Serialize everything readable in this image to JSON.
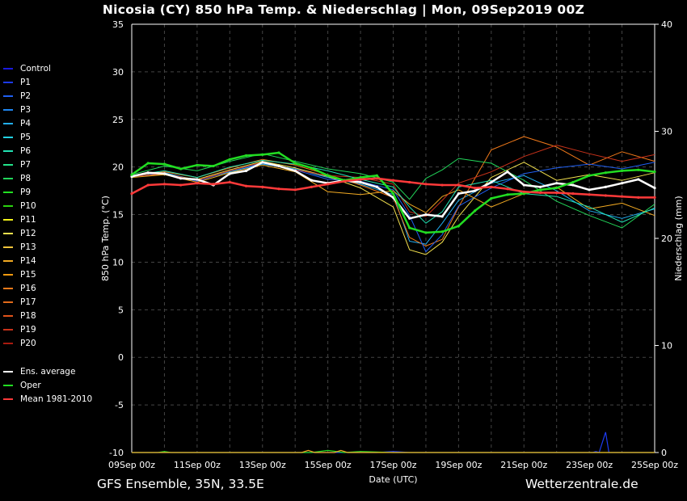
{
  "header": {
    "title": "Nicosia  (CY)  850 hPa Temp. & Niederschlag | Mon, 09Sep2019 00Z"
  },
  "footer": {
    "left": "GFS Ensemble, 35N, 33.5E",
    "right": "Wetterzentrale.de"
  },
  "chart_data": {
    "type": "line",
    "title": "Nicosia  (CY)  850 hPa Temp. & Niederschlag | Mon, 09Sep2019 00Z",
    "xlabel": "Date (UTC)",
    "ylabel": "850 hPa Temp. (°C)",
    "y2label": "Niederschlag (mm)",
    "ylim": [
      -10,
      35
    ],
    "y2lim": [
      0,
      40
    ],
    "yticks": [
      35,
      30,
      25,
      20,
      15,
      10,
      5,
      0,
      -5,
      -10
    ],
    "y2ticks": [
      40,
      30,
      20,
      10,
      0
    ],
    "xlim": [
      0,
      16
    ],
    "x_units": "days since 09Sep 00z (4 steps per day)",
    "xticks": [
      "09Sep 00z",
      "11Sep 00z",
      "13Sep 00z",
      "15Sep 00z",
      "17Sep 00z",
      "19Sep 00z",
      "21Sep 00z",
      "23Sep 00z",
      "25Sep 00z"
    ],
    "grid": true,
    "legend_position": "left",
    "legend": [
      {
        "name": "Control",
        "color": "#1a1adf"
      },
      {
        "name": "P1",
        "color": "#1c3bf2"
      },
      {
        "name": "P2",
        "color": "#1f5ff2"
      },
      {
        "name": "P3",
        "color": "#1f86f0"
      },
      {
        "name": "P4",
        "color": "#22aef2"
      },
      {
        "name": "P5",
        "color": "#22d2e3"
      },
      {
        "name": "P6",
        "color": "#22e3b4"
      },
      {
        "name": "P7",
        "color": "#22e38a"
      },
      {
        "name": "P8",
        "color": "#22d65a"
      },
      {
        "name": "P9",
        "color": "#22e022"
      },
      {
        "name": "P10",
        "color": "#2bd20f"
      },
      {
        "name": "P11",
        "color": "#f2f21a"
      },
      {
        "name": "P12",
        "color": "#f2e04d"
      },
      {
        "name": "P13",
        "color": "#f2c43a"
      },
      {
        "name": "P14",
        "color": "#f2aa22"
      },
      {
        "name": "P15",
        "color": "#f29a0f"
      },
      {
        "name": "P16",
        "color": "#f27a1a"
      },
      {
        "name": "P17",
        "color": "#e26a1a"
      },
      {
        "name": "P18",
        "color": "#e0521a"
      },
      {
        "name": "P19",
        "color": "#c8321a"
      },
      {
        "name": "P20",
        "color": "#a81a0f"
      },
      {
        "name": "Ens. average",
        "color": "#ffffff"
      },
      {
        "name": "Oper",
        "color": "#22dd22"
      },
      {
        "name": "Mean 1981-2010",
        "color": "#ff3a3a"
      }
    ],
    "series": [
      {
        "name": "Ens. average",
        "color": "#ffffff",
        "width": 2.5,
        "x": [
          0,
          0.5,
          1,
          1.5,
          2,
          2.5,
          3,
          3.5,
          4,
          4.5,
          5,
          5.5,
          6,
          6.5,
          7,
          7.5,
          8,
          8.5,
          9,
          9.5,
          10,
          10.5,
          11,
          11.5,
          12,
          12.5,
          13,
          13.5,
          14,
          14.5,
          15,
          15.5,
          16
        ],
        "y": [
          19,
          19.4,
          19.3,
          18.8,
          18.7,
          18.1,
          19.3,
          19.6,
          20.5,
          20.1,
          19.6,
          18.6,
          18.3,
          18.6,
          18.4,
          17.9,
          16.8,
          14.6,
          15,
          14.8,
          17.2,
          17.5,
          18.4,
          19.5,
          18.1,
          17.9,
          18.3,
          18.1,
          17.6,
          17.9,
          18.3,
          18.7,
          17.8
        ]
      },
      {
        "name": "Oper",
        "color": "#22dd22",
        "width": 2.5,
        "x": [
          0,
          0.5,
          1,
          1.5,
          2,
          2.5,
          3,
          3.5,
          4,
          4.5,
          5,
          5.5,
          6,
          6.5,
          7,
          7.5,
          8,
          8.5,
          9,
          9.5,
          10,
          10.5,
          11,
          11.5,
          12,
          12.5,
          13,
          13.5,
          14,
          14.5,
          15,
          15.5,
          16
        ],
        "y": [
          19.2,
          20.4,
          20.3,
          19.8,
          20.2,
          20.1,
          20.8,
          21.2,
          21.3,
          21.5,
          20.4,
          19.9,
          19.1,
          18.6,
          18.9,
          19.1,
          17.2,
          13.6,
          13.1,
          13.2,
          13.8,
          15.4,
          16.7,
          17.1,
          17.2,
          17.6,
          17.8,
          18.4,
          19.1,
          19.4,
          19.6,
          19.7,
          19.5
        ]
      },
      {
        "name": "Mean 1981-2010",
        "color": "#ff3a3a",
        "width": 2.5,
        "x": [
          0,
          0.5,
          1,
          1.5,
          2,
          2.5,
          3,
          3.5,
          4,
          4.5,
          5,
          5.5,
          6,
          6.5,
          7,
          7.5,
          8,
          8.5,
          9,
          9.5,
          10,
          10.5,
          11,
          11.5,
          12,
          12.5,
          13,
          13.5,
          14,
          14.5,
          15,
          15.5,
          16
        ],
        "y": [
          17.2,
          18.1,
          18.2,
          18.1,
          18.3,
          18.2,
          18.4,
          18,
          17.9,
          17.7,
          17.6,
          17.9,
          18.2,
          18.5,
          18.7,
          18.8,
          18.6,
          18.4,
          18.2,
          18.1,
          18.1,
          17.8,
          17.9,
          17.7,
          17.4,
          17.3,
          17.3,
          17.2,
          17.1,
          17,
          16.9,
          16.8,
          16.8
        ]
      },
      {
        "name": "P4",
        "color": "#22aef2",
        "width": 1,
        "x": [
          0,
          1,
          2,
          3,
          4,
          5,
          6,
          7,
          8,
          8.5,
          9,
          9.5,
          10,
          11,
          12,
          13,
          14,
          15,
          16
        ],
        "y": [
          19,
          19.4,
          18.6,
          19.5,
          20.3,
          19.8,
          18.9,
          18.2,
          17.1,
          12.2,
          11.9,
          14.1,
          16.5,
          18.3,
          19.1,
          17.5,
          15.4,
          14.6,
          15.6
        ]
      },
      {
        "name": "P12",
        "color": "#f2e04d",
        "width": 1,
        "x": [
          0,
          1,
          2,
          3,
          4,
          5,
          6,
          7,
          8,
          8.5,
          9,
          9.5,
          10,
          11,
          12,
          13,
          14,
          15,
          16
        ],
        "y": [
          19.1,
          19.2,
          18.7,
          19.7,
          20.6,
          19.9,
          19,
          17.8,
          15.8,
          11.3,
          10.8,
          12.1,
          14.8,
          18.9,
          20.5,
          18.6,
          19.2,
          18.6,
          19.4
        ]
      },
      {
        "name": "P16",
        "color": "#f27a1a",
        "width": 1,
        "x": [
          0,
          1,
          2,
          3,
          4,
          5,
          6,
          7,
          8,
          8.5,
          9,
          9.5,
          10,
          11,
          12,
          13,
          14,
          15,
          16
        ],
        "y": [
          19.1,
          19.5,
          18.9,
          19.9,
          20.8,
          20.2,
          19.2,
          18.1,
          16.8,
          12.6,
          11.7,
          12.4,
          15.8,
          21.8,
          23.2,
          22.1,
          20.2,
          21.6,
          20.6
        ]
      },
      {
        "name": "P2",
        "color": "#1f5ff2",
        "width": 1,
        "x": [
          0,
          1,
          2,
          3,
          4,
          5,
          6,
          7,
          8,
          8.5,
          9,
          9.5,
          10,
          11,
          12,
          13,
          14,
          15,
          16
        ],
        "y": [
          19,
          19.3,
          18.5,
          19.6,
          20.4,
          19.7,
          18.7,
          18.5,
          17.6,
          14.9,
          11.1,
          12.9,
          15.9,
          17.8,
          19.3,
          19.9,
          20.3,
          19.8,
          20.5
        ]
      },
      {
        "name": "P8",
        "color": "#22d65a",
        "width": 1,
        "x": [
          0,
          1,
          2,
          3,
          4,
          5,
          6,
          7,
          8,
          8.5,
          9,
          9.5,
          10,
          11,
          12,
          13,
          14,
          15,
          16
        ],
        "y": [
          19.2,
          20.1,
          19.6,
          20.6,
          21.4,
          20.6,
          19.8,
          19.3,
          18.4,
          16.6,
          18.8,
          19.7,
          20.9,
          20.4,
          18.6,
          16.4,
          14.9,
          13.6,
          16.1
        ]
      },
      {
        "name": "P14",
        "color": "#f2aa22",
        "width": 1,
        "x": [
          0,
          1,
          2,
          3,
          4,
          5,
          6,
          7,
          8,
          8.5,
          9,
          9.5,
          10,
          11,
          12,
          13,
          14,
          15,
          16
        ],
        "y": [
          18.9,
          19.2,
          18.4,
          19.4,
          20.2,
          19.5,
          17.4,
          17.1,
          17.5,
          16.1,
          15.2,
          16.9,
          17.6,
          15.8,
          17.2,
          17.9,
          15.6,
          16.2,
          14.9
        ]
      },
      {
        "name": "P19",
        "color": "#c8321a",
        "width": 1,
        "x": [
          0,
          1,
          2,
          3,
          4,
          5,
          6,
          7,
          8,
          8.5,
          9,
          9.5,
          10,
          11,
          12,
          13,
          14,
          15,
          16
        ],
        "y": [
          19,
          19.3,
          18.6,
          19.6,
          20.5,
          19.7,
          19.1,
          18.9,
          18.2,
          15.3,
          14.8,
          16.5,
          18.3,
          19.5,
          21.1,
          22.3,
          21.4,
          20.6,
          21.3
        ]
      },
      {
        "name": "P6",
        "color": "#22e3b4",
        "width": 1,
        "x": [
          0,
          1,
          2,
          3,
          4,
          5,
          6,
          7,
          8,
          8.5,
          9,
          9.5,
          10,
          11,
          12,
          13,
          14,
          15,
          16
        ],
        "y": [
          19.1,
          19.6,
          18.9,
          20,
          20.7,
          20.3,
          19.6,
          18.7,
          17.9,
          15.8,
          14.1,
          15.3,
          17.9,
          18.6,
          17.2,
          16.9,
          15.8,
          14.2,
          15.7
        ]
      }
    ],
    "precip_series": [
      {
        "name": "P1",
        "color": "#1c3bf2",
        "x": [
          0,
          7.5,
          8,
          8.5,
          14,
          14.1,
          14.2,
          14.3,
          14.5,
          14.6,
          16
        ],
        "y": [
          0,
          0,
          0.1,
          0,
          0,
          0,
          0.1,
          0,
          1.9,
          0,
          0
        ]
      },
      {
        "name": "Oper",
        "color": "#22dd22",
        "x": [
          0,
          0.8,
          1,
          1.2,
          5.5,
          6,
          6.5,
          7,
          8,
          16
        ],
        "y": [
          0,
          0,
          0.1,
          0,
          0,
          0.2,
          0,
          0.1,
          0,
          0
        ]
      },
      {
        "name": "P14",
        "color": "#f2aa22",
        "x": [
          0,
          5.2,
          5.4,
          5.6,
          6.2,
          6.4,
          6.6,
          16
        ],
        "y": [
          0,
          0,
          0.2,
          0,
          0,
          0.2,
          0,
          0
        ]
      }
    ]
  }
}
